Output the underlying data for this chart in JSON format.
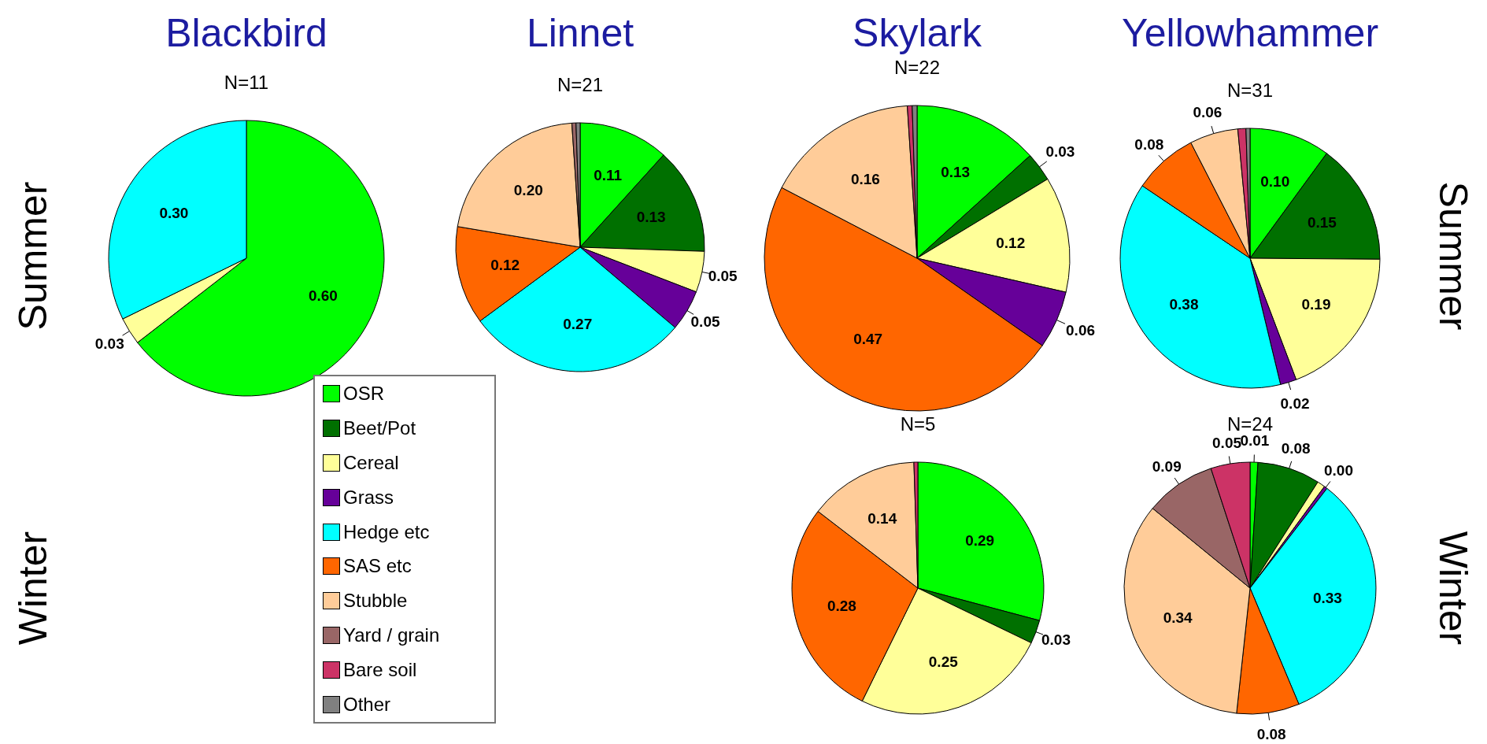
{
  "chart_data": [
    {
      "type": "other",
      "annotations": [
        "Blackbird",
        "Linnet",
        "Skylark",
        "Yellowhammer",
        "Summer",
        "Winter",
        "Summer",
        "Winter"
      ]
    },
    {
      "type": "pie",
      "title": "N=11",
      "categories": [
        null,
        null,
        null
      ],
      "values": [
        0.6,
        0.03,
        0.3
      ],
      "colors": [
        "#00ff00",
        "#ffff99",
        "#00ffff"
      ],
      "value_labels": [
        "0.60",
        "0.03",
        "0.30"
      ]
    },
    {
      "type": "pie",
      "title": "N=21",
      "legend": "bottom left",
      "categories": [
        "OSR",
        "Beet/Pot",
        "Cereal",
        "Grass",
        "Hedge etc",
        "SAS etc",
        "Stubble",
        "Yard / grain",
        "Bare soil",
        "Other"
      ],
      "values": [
        0.11,
        0.13,
        0.05,
        0.05,
        0.27,
        0.12,
        0.2,
        0.005,
        null,
        0.005
      ],
      "colors": [
        "#00ff00",
        "#007000",
        "#ffff99",
        "#660099",
        "#00ffff",
        "#ff6600",
        "#ffcc99",
        "#996666",
        "#cc3366",
        "#808080"
      ],
      "value_labels": [
        "0.11",
        "0.13",
        "0.05",
        "0.05",
        "0.27",
        "0.12",
        "0.20",
        null,
        null,
        null
      ]
    },
    {
      "type": "pie",
      "title": "N=22",
      "categories": [
        null,
        null,
        null,
        null,
        null,
        null,
        null,
        null
      ],
      "values": [
        0.13,
        0.03,
        0.12,
        0.06,
        0.47,
        0.16,
        0.005,
        0.005
      ],
      "colors": [
        "#00ff00",
        "#007000",
        "#ffff99",
        "#660099",
        "#ff6600",
        "#ffcc99",
        "#cc3366",
        "#808080"
      ],
      "value_labels": [
        "0.13",
        "0.03",
        "0.12",
        "0.06",
        "0.47",
        "0.16",
        null,
        null
      ]
    },
    {
      "type": "pie",
      "title": "N=31",
      "categories": [
        null,
        null,
        null,
        null,
        null,
        null,
        null,
        null,
        null
      ],
      "values": [
        0.1,
        0.15,
        0.19,
        0.02,
        0.38,
        0.08,
        0.06,
        0.01,
        0.005
      ],
      "colors": [
        "#00ff00",
        "#007000",
        "#ffff99",
        "#660099",
        "#00ffff",
        "#ff6600",
        "#ffcc99",
        "#cc3366",
        "#808080"
      ],
      "value_labels": [
        "0.10",
        "0.15",
        "0.19",
        "0.02",
        "0.38",
        "0.08",
        "0.06",
        null,
        null
      ]
    },
    {
      "type": "pie",
      "title": "N=5",
      "categories": [
        null,
        null,
        null,
        null,
        null,
        null
      ],
      "values": [
        0.29,
        0.03,
        0.25,
        0.28,
        0.14,
        0.005
      ],
      "colors": [
        "#00ff00",
        "#007000",
        "#ffff99",
        "#ff6600",
        "#ffcc99",
        "#cc3366"
      ],
      "value_labels": [
        "0.29",
        "0.03",
        "0.25",
        "0.28",
        "0.14",
        null
      ]
    },
    {
      "type": "pie",
      "title": "N=24",
      "categories": [
        null,
        null,
        null,
        null,
        null,
        null,
        null,
        null,
        null
      ],
      "values": [
        0.01,
        0.08,
        0.01,
        0.004,
        0.33,
        0.08,
        0.34,
        0.09,
        0.05
      ],
      "colors": [
        "#00ff00",
        "#007000",
        "#ffff99",
        "#660099",
        "#00ffff",
        "#ff6600",
        "#ffcc99",
        "#996666",
        "#cc3366"
      ],
      "value_labels": [
        "0.01",
        "0.08",
        null,
        "0.00",
        "0.33",
        "0.08",
        "0.34",
        "0.09",
        "0.05"
      ]
    }
  ]
}
